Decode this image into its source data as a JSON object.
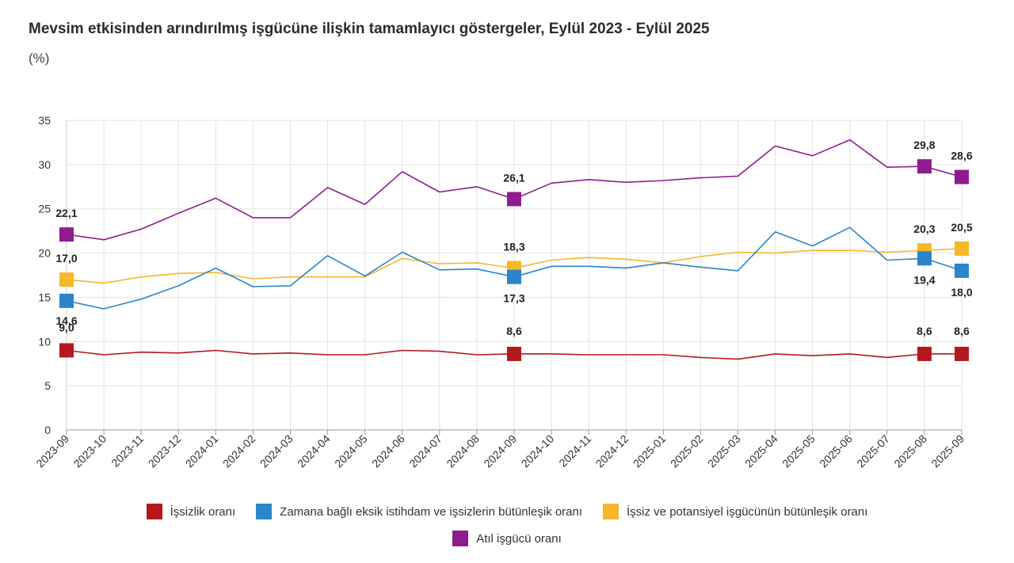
{
  "title": "Mevsim etkisinden arındırılmış işgücüne ilişkin tamamlayıcı göstergeler, Eylül 2023 - Eylül 2025",
  "unit": "(%)",
  "legend_placement": "bottom",
  "chart_data": {
    "type": "line",
    "title": "Mevsim etkisinden arındırılmış işgücüne ilişkin tamamlayıcı göstergeler, Eylül 2023 - Eylül 2025",
    "ylabel": "(%)",
    "xlabel": "",
    "ylim": [
      0,
      35
    ],
    "yticks": [
      0,
      5,
      10,
      15,
      20,
      25,
      30,
      35
    ],
    "grid": true,
    "x": [
      "2023-09",
      "2023-10",
      "2023-11",
      "2023-12",
      "2024-01",
      "2024-02",
      "2024-03",
      "2024-04",
      "2024-05",
      "2024-06",
      "2024-07",
      "2024-08",
      "2024-09",
      "2024-10",
      "2024-11",
      "2024-12",
      "2025-01",
      "2025-02",
      "2025-03",
      "2025-04",
      "2025-05",
      "2025-06",
      "2025-07",
      "2025-08",
      "2025-09"
    ],
    "labeled_points": [
      0,
      12,
      23,
      24
    ],
    "series": [
      {
        "name": "İşsizlik oranı",
        "color": "#b5171f",
        "values": [
          9.0,
          8.5,
          8.8,
          8.7,
          9.0,
          8.6,
          8.7,
          8.5,
          8.5,
          9.0,
          8.9,
          8.5,
          8.6,
          8.6,
          8.5,
          8.5,
          8.5,
          8.2,
          8.0,
          8.6,
          8.4,
          8.6,
          8.2,
          8.6,
          8.6
        ],
        "labels": [
          "9,0",
          "8,6",
          "8,6",
          "8,6"
        ]
      },
      {
        "name": "Zamana bağlı eksik istihdam ve işsizlerin bütünleşik oranı",
        "color": "#2a86c8",
        "values": [
          14.6,
          13.7,
          14.8,
          16.3,
          18.3,
          16.2,
          16.3,
          19.7,
          17.4,
          20.1,
          18.1,
          18.2,
          17.3,
          18.5,
          18.5,
          18.3,
          18.9,
          18.4,
          18.0,
          22.4,
          20.8,
          22.9,
          19.2,
          19.4,
          18.0
        ],
        "labels": [
          "14,6",
          "17,3",
          "19,4",
          "18,0"
        ]
      },
      {
        "name": "İşsiz ve potansiyel işgücünün bütünleşik oranı",
        "color": "#f5b82a",
        "values": [
          17.0,
          16.6,
          17.3,
          17.7,
          17.8,
          17.1,
          17.3,
          17.3,
          17.3,
          19.4,
          18.8,
          18.9,
          18.3,
          19.2,
          19.5,
          19.3,
          18.9,
          19.6,
          20.1,
          20.0,
          20.3,
          20.3,
          20.1,
          20.3,
          20.5
        ],
        "labels": [
          "17,0",
          "18,3",
          "20,3",
          "20,5"
        ]
      },
      {
        "name": "Atıl işgücü oranı",
        "color": "#8e1c8f",
        "values": [
          22.1,
          21.5,
          22.7,
          24.5,
          26.2,
          24.0,
          24.0,
          27.4,
          25.5,
          29.2,
          26.9,
          27.5,
          26.1,
          27.9,
          28.3,
          28.0,
          28.2,
          28.5,
          28.7,
          32.1,
          31.0,
          32.8,
          29.7,
          29.8,
          28.6
        ],
        "labels": [
          "22,1",
          "26,1",
          "29,8",
          "28,6"
        ]
      }
    ]
  }
}
